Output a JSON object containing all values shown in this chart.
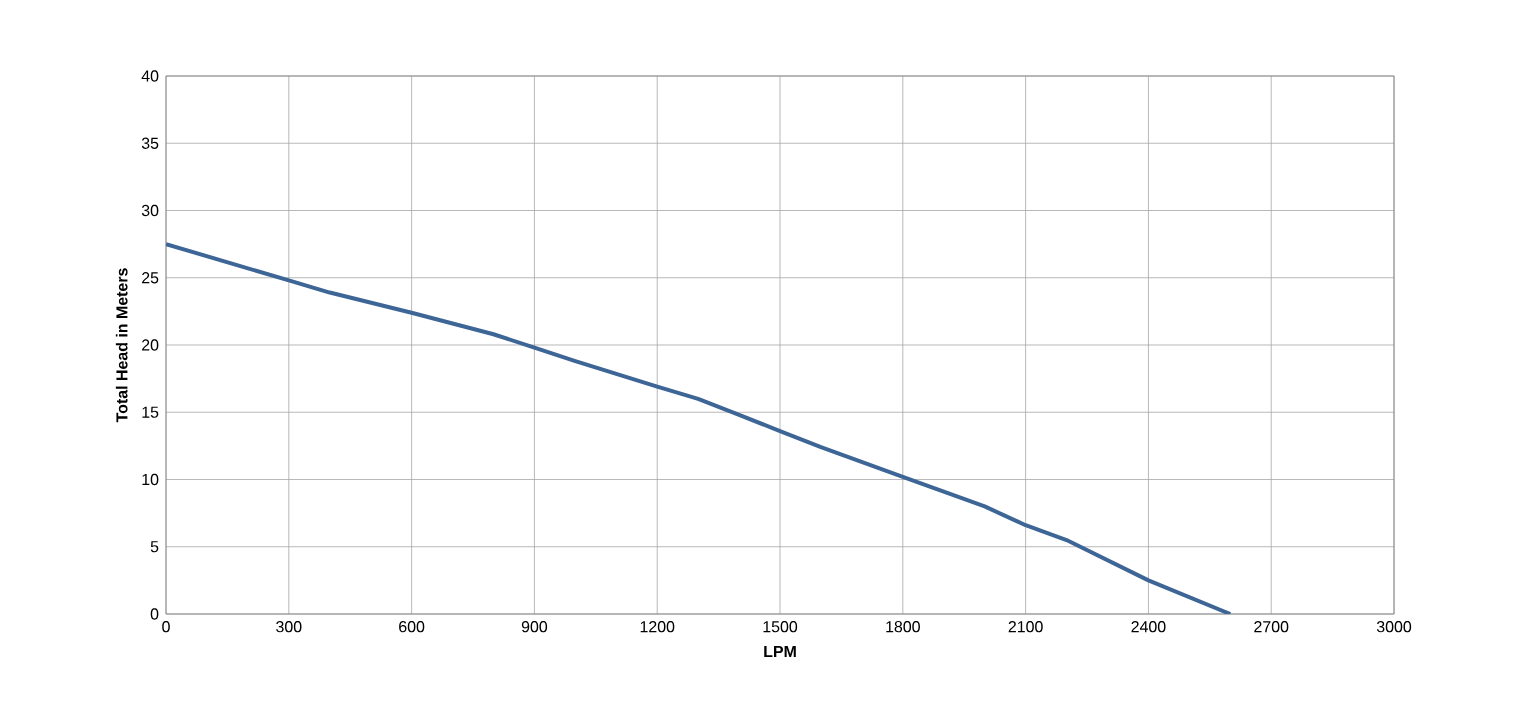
{
  "chart_data": {
    "type": "line",
    "xlabel": "LPM",
    "ylabel": "Total Head in Meters",
    "x": [
      0,
      300,
      400,
      600,
      800,
      900,
      1000,
      1200,
      1300,
      1400,
      1500,
      1600,
      1800,
      2000,
      2100,
      2200,
      2400,
      2600
    ],
    "series": [
      {
        "color": "#3d6596",
        "values": [
          27.5,
          24.8,
          23.9,
          22.4,
          20.8,
          19.8,
          18.8,
          16.9,
          16.0,
          14.8,
          13.6,
          12.4,
          10.2,
          8.0,
          6.6,
          5.5,
          2.5,
          0
        ]
      }
    ],
    "xlim": [
      0,
      3000
    ],
    "xticks": [
      0,
      300,
      600,
      900,
      1200,
      1500,
      1800,
      2100,
      2400,
      2700,
      3000
    ],
    "ylim": [
      0,
      40
    ],
    "yticks": [
      0,
      5,
      10,
      15,
      20,
      25,
      30,
      35,
      40
    ],
    "grid": true,
    "marker": "none",
    "line_style": "solid"
  }
}
